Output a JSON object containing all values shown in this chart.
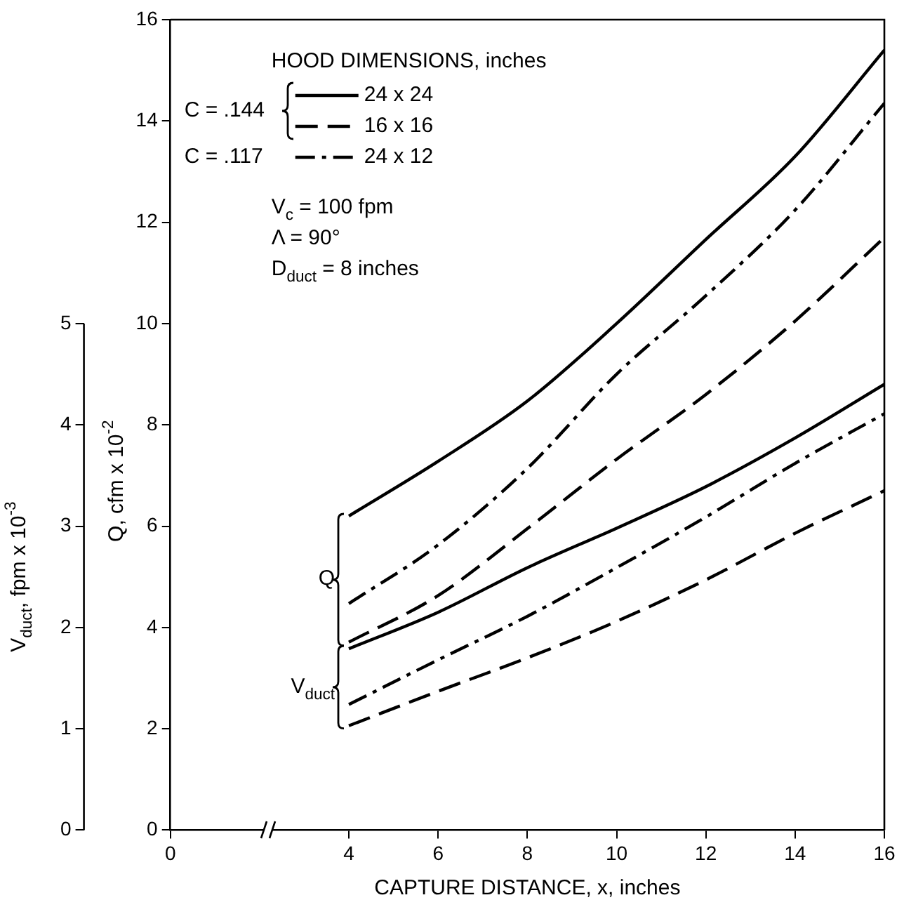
{
  "chart_data": {
    "type": "line",
    "xlabel": "CAPTURE DISTANCE, x, inches",
    "ylabel": "Q, cfm x 10$^{-2}$",
    "y2label": "V$_{duct}$, fpm x 10$^{-3}$",
    "legend_title": "HOOD DIMENSIONS, inches",
    "x": [
      4,
      6,
      8,
      10,
      12,
      14,
      16
    ],
    "xlim": [
      0,
      16
    ],
    "xticks": [
      0,
      4,
      6,
      8,
      10,
      12,
      14,
      16
    ],
    "ylim": [
      0,
      16
    ],
    "yticks": [
      0,
      2,
      4,
      6,
      8,
      10,
      12,
      14,
      16
    ],
    "y2lim": [
      0,
      8
    ],
    "y2ticks": [
      0,
      1,
      2,
      3,
      4,
      5
    ],
    "grid": false,
    "legend": "top left",
    "marker": "none",
    "series": [
      {
        "name": "24 x 24",
        "color": "#000000",
        "line_style": "solid",
        "values": [
          6.2,
          7.28,
          8.47,
          10.0,
          11.66,
          13.3,
          15.4
        ]
      },
      {
        "name": "16 x 16",
        "color": "#000000",
        "line_style": "dashed",
        "values": [
          3.71,
          4.63,
          5.95,
          7.32,
          8.6,
          10.05,
          11.7
        ]
      },
      {
        "name": "24 x 12",
        "color": "#000000",
        "line_style": "dashdot",
        "values": [
          4.47,
          5.63,
          7.14,
          9.0,
          10.55,
          12.24,
          14.35
        ]
      },
      {
        "color": "#000000",
        "line_style": "solid",
        "axis": "y2",
        "values": [
          1.79,
          2.15,
          2.59,
          2.98,
          3.39,
          3.87,
          4.4
        ]
      },
      {
        "color": "#000000",
        "line_style": "dashed",
        "axis": "y2",
        "values": [
          1.03,
          1.37,
          1.7,
          2.06,
          2.47,
          2.93,
          3.35
        ]
      },
      {
        "color": "#000000",
        "line_style": "dashdot",
        "axis": "y2",
        "values": [
          1.24,
          1.68,
          2.11,
          2.59,
          3.09,
          3.62,
          4.11
        ]
      }
    ],
    "annotations": [
      "C = .144",
      "C = .117",
      "V$_{c}$ = 100 fpm",
      "Λ = 90°",
      "D$_{duct}$ = 8 inches",
      "Q",
      "V$_{duct}$"
    ]
  }
}
